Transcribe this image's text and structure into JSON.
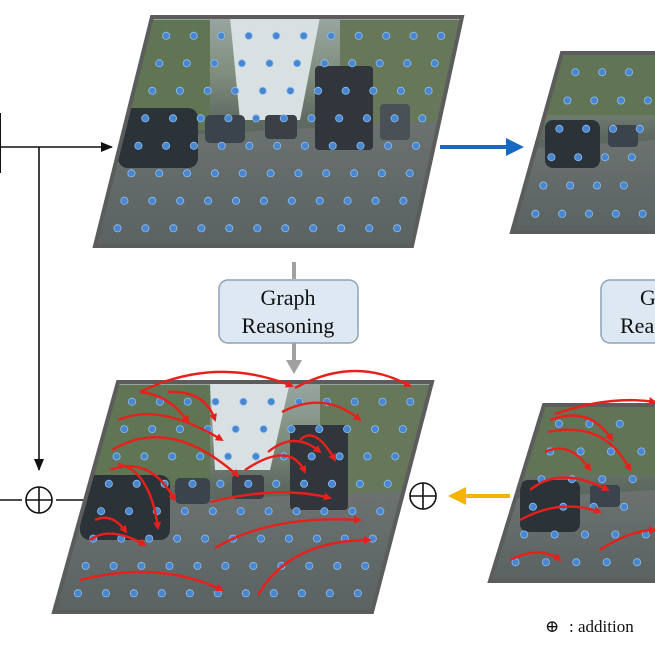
{
  "graph_reasoning_box": {
    "line1": "Graph",
    "line2": "Reasoning"
  },
  "graph_reasoning_box_right": {
    "line1": "G",
    "line2": "Rea"
  },
  "legend": {
    "symbol": "⊕",
    "text": ": addition"
  },
  "colors": {
    "node": "#4a86d0",
    "edge": "#e8201c",
    "blue_arrow": "#1769c2",
    "yellow_arrow": "#f5b400",
    "gray_arrow": "#a0a0a0",
    "box_fill": "#dde8f3",
    "box_stroke": "#8ea2b8"
  },
  "icons": [
    "addition-icon",
    "right-arrow-icon",
    "left-arrow-icon",
    "down-arrow-icon"
  ]
}
